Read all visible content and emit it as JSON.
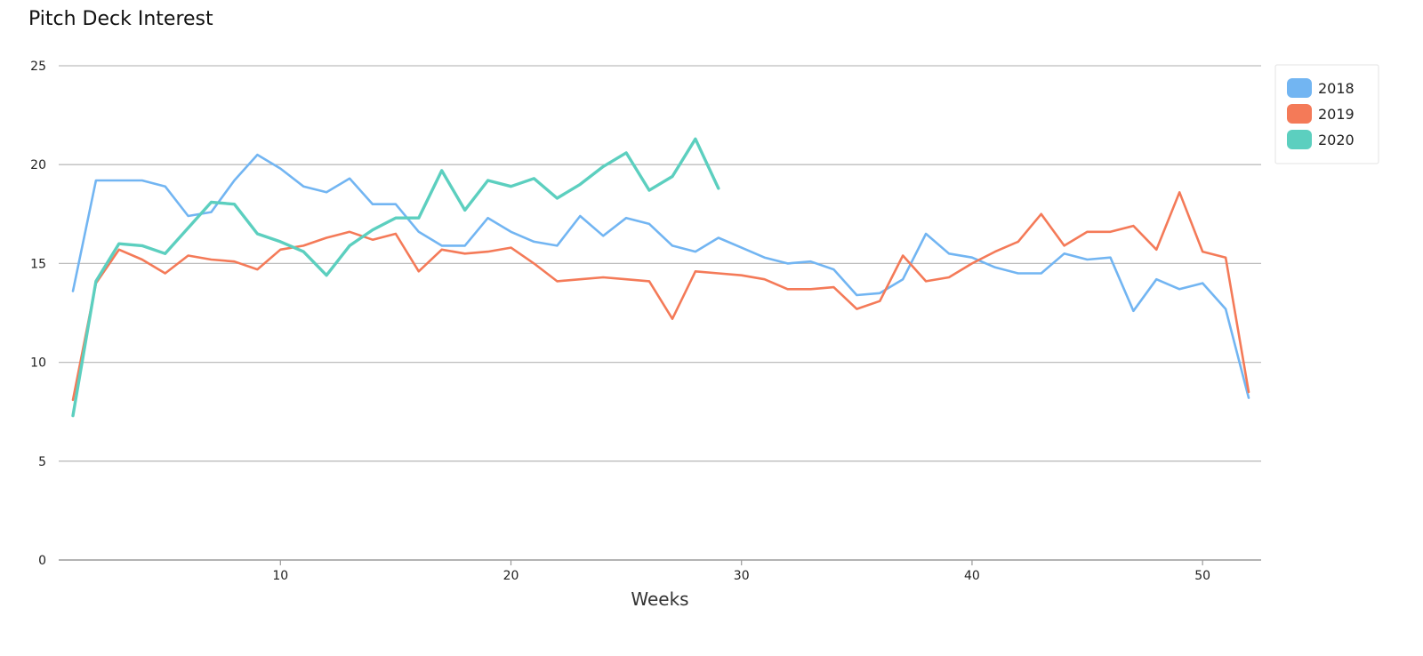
{
  "chart_data": {
    "type": "line",
    "title": "Pitch Deck Interest",
    "xlabel": "Weeks",
    "ylabel": "",
    "xlim": [
      1,
      52
    ],
    "ylim": [
      0,
      25
    ],
    "xticks": [
      10,
      20,
      30,
      40,
      50
    ],
    "yticks": [
      0,
      5,
      10,
      15,
      20,
      25
    ],
    "grid": "horizontal",
    "legend_position": "top-right",
    "series": [
      {
        "name": "2018",
        "color": "#72b5f2",
        "x": [
          1,
          2,
          3,
          4,
          5,
          6,
          7,
          8,
          9,
          10,
          11,
          12,
          13,
          14,
          15,
          16,
          17,
          18,
          19,
          20,
          21,
          22,
          23,
          24,
          25,
          26,
          27,
          28,
          29,
          30,
          31,
          32,
          33,
          34,
          35,
          36,
          37,
          38,
          39,
          40,
          41,
          42,
          43,
          44,
          45,
          46,
          47,
          48,
          49,
          50,
          51,
          52
        ],
        "y": [
          13.6,
          19.2,
          19.2,
          19.2,
          18.9,
          17.4,
          17.6,
          19.2,
          20.5,
          19.8,
          18.9,
          18.6,
          19.3,
          18.0,
          18.0,
          16.6,
          15.9,
          15.9,
          17.3,
          16.6,
          16.1,
          15.9,
          17.4,
          16.4,
          17.3,
          17.0,
          15.9,
          15.6,
          16.3,
          15.8,
          15.3,
          15.0,
          15.1,
          14.7,
          13.4,
          13.5,
          14.2,
          16.5,
          15.5,
          15.3,
          14.8,
          14.5,
          14.5,
          15.5,
          15.2,
          15.3,
          12.6,
          14.2,
          13.7,
          14.0,
          12.7,
          8.2
        ]
      },
      {
        "name": "2019",
        "color": "#f47a58",
        "x": [
          1,
          2,
          3,
          4,
          5,
          6,
          7,
          8,
          9,
          10,
          11,
          12,
          13,
          14,
          15,
          16,
          17,
          18,
          19,
          20,
          21,
          22,
          23,
          24,
          25,
          26,
          27,
          28,
          29,
          30,
          31,
          32,
          33,
          34,
          35,
          36,
          37,
          38,
          39,
          40,
          41,
          42,
          43,
          44,
          45,
          46,
          47,
          48,
          49,
          50,
          51,
          52
        ],
        "y": [
          8.1,
          14.0,
          15.7,
          15.2,
          14.5,
          15.4,
          15.2,
          15.1,
          14.7,
          15.7,
          15.9,
          16.3,
          16.6,
          16.2,
          16.5,
          14.6,
          15.7,
          15.5,
          15.6,
          15.8,
          15.0,
          14.1,
          14.2,
          14.3,
          14.2,
          14.1,
          12.2,
          14.6,
          14.5,
          14.4,
          14.2,
          13.7,
          13.7,
          13.8,
          12.7,
          13.1,
          15.4,
          14.1,
          14.3,
          15.0,
          15.6,
          16.1,
          17.5,
          15.9,
          16.6,
          16.6,
          16.9,
          15.7,
          18.6,
          15.6,
          15.3,
          8.5
        ]
      },
      {
        "name": "2020",
        "color": "#5ccfbf",
        "x": [
          1,
          2,
          3,
          4,
          5,
          6,
          7,
          8,
          9,
          10,
          11,
          12,
          13,
          14,
          15,
          16,
          17,
          18,
          19,
          20,
          21,
          22,
          23,
          24,
          25,
          26,
          27,
          28,
          29
        ],
        "y": [
          7.3,
          14.1,
          16.0,
          15.9,
          15.5,
          16.8,
          18.1,
          18.0,
          16.5,
          16.1,
          15.6,
          14.4,
          15.9,
          16.7,
          17.3,
          17.3,
          19.7,
          17.7,
          19.2,
          18.9,
          19.3,
          18.3,
          19.0,
          19.9,
          20.6,
          18.7,
          19.4,
          21.3,
          18.8
        ]
      }
    ]
  }
}
